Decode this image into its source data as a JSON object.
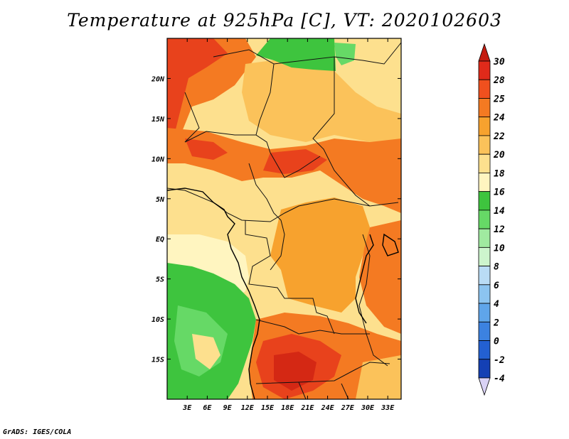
{
  "title": "Temperature at 925hPa [C], VT: 2020102603",
  "credit": "GrADS: IGES/COLA",
  "map": {
    "lon_range": [
      0,
      35
    ],
    "lat_range": [
      -20,
      25
    ],
    "x_ticks": [
      "3E",
      "6E",
      "9E",
      "12E",
      "15E",
      "18E",
      "21E",
      "24E",
      "27E",
      "30E",
      "33E"
    ],
    "x_tick_values": [
      3,
      6,
      9,
      12,
      15,
      18,
      21,
      24,
      27,
      30,
      33
    ],
    "y_ticks": [
      "20N",
      "15N",
      "10N",
      "5N",
      "EQ",
      "5S",
      "10S",
      "15S"
    ],
    "y_tick_values": [
      20,
      15,
      10,
      5,
      0,
      -5,
      -10,
      -15
    ]
  },
  "colorbar": {
    "labels": [
      "30",
      "28",
      "25",
      "24",
      "22",
      "20",
      "18",
      "16",
      "14",
      "12",
      "10",
      "8",
      "6",
      "4",
      "2",
      "0",
      "-2",
      "-4"
    ],
    "colors": [
      "#e02a1a",
      "#f0501e",
      "#f47a22",
      "#f7a22e",
      "#fbc25a",
      "#fde08e",
      "#fff5c0",
      "#3ec43e",
      "#66d966",
      "#a0eaa0",
      "#cdf5cd",
      "#b9dcf5",
      "#8cc4f0",
      "#5fa5ea",
      "#3c82e0",
      "#2360d2",
      "#1440b4",
      "#0a1e78"
    ],
    "top_color": "#c41c10",
    "bottom_color": "#d9d2f5"
  },
  "colors": {
    "hot": "#e8421c",
    "very_hot": "#d42814",
    "warm_orange": "#f47a22",
    "orange": "#f7a22e",
    "light_orange": "#fbc25a",
    "pale": "#fde08e",
    "cream": "#fff5c0",
    "green": "#3ec43e",
    "light_green": "#66d966"
  }
}
